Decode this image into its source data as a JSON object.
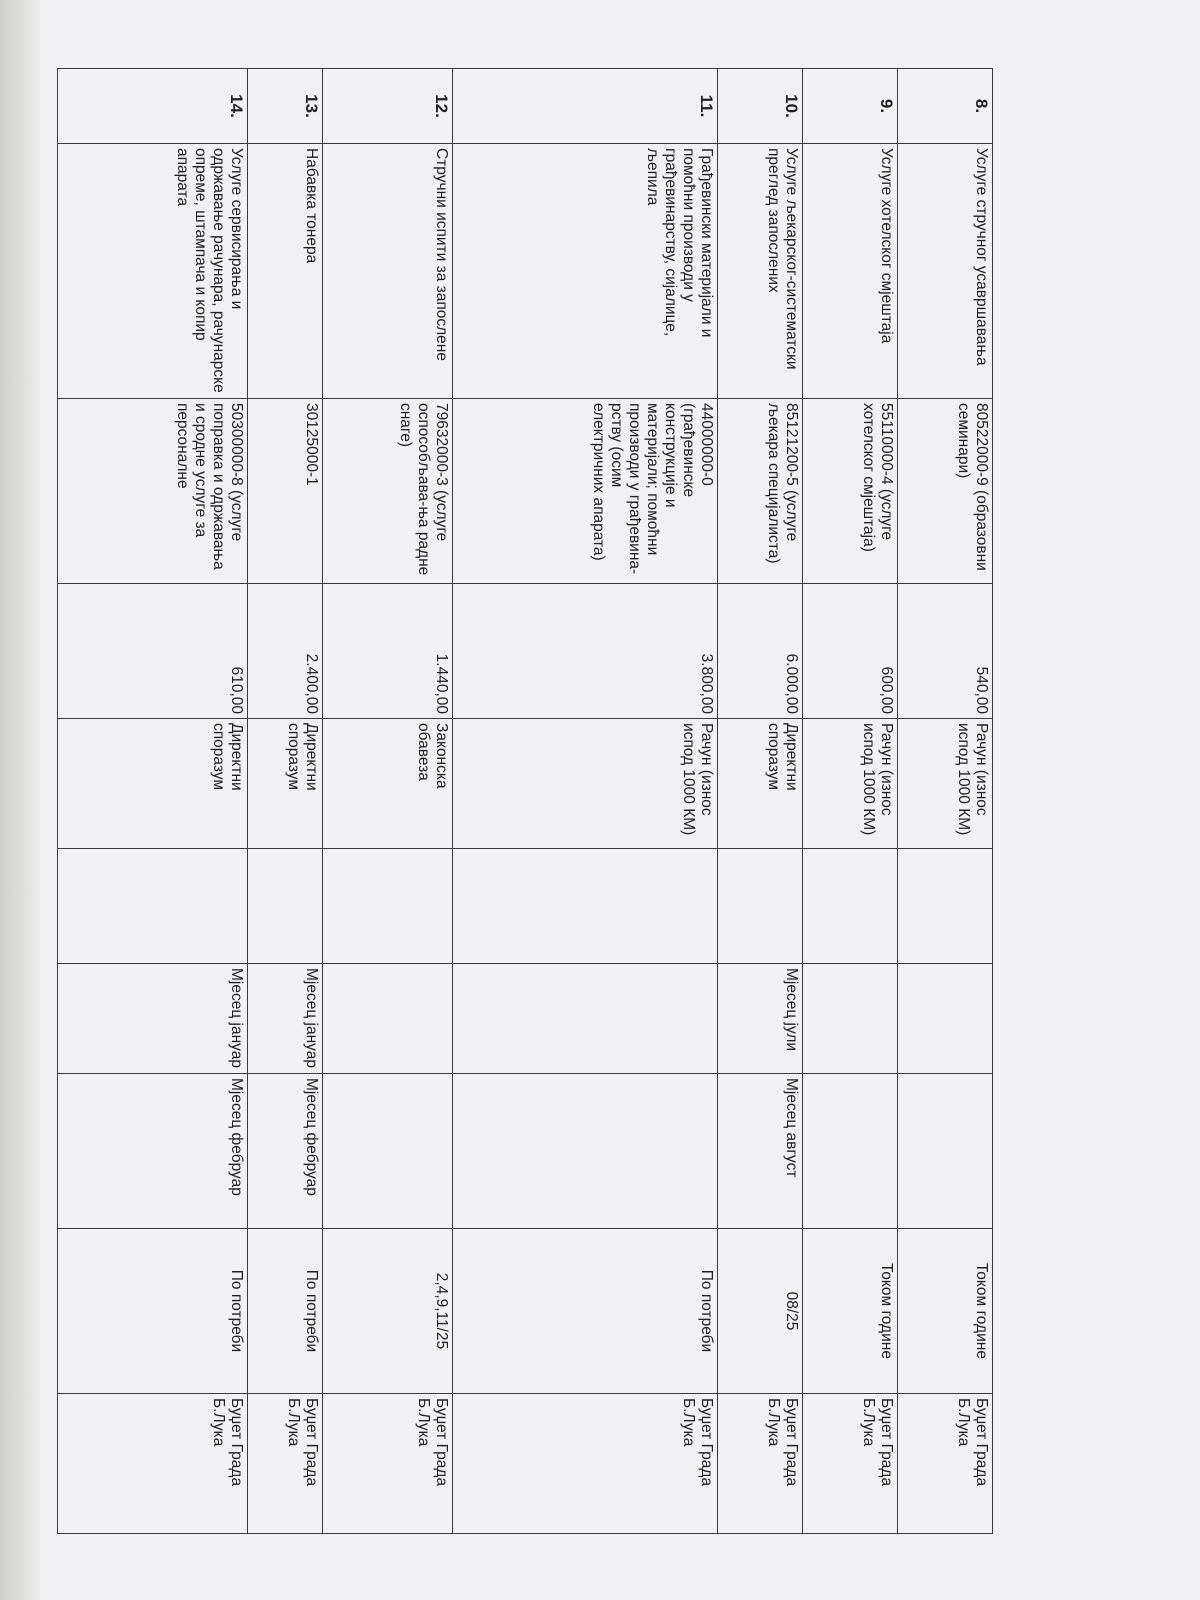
{
  "document": {
    "rows": [
      {
        "no": "8.",
        "subject": "Услуге стручног усавршавања",
        "cpv": "80522000-9 (образовни семинари)",
        "value": "540,00",
        "procedure": "Рачун (износ испод 1000 КМ)",
        "col6": "",
        "start": "",
        "end": "",
        "timing": "Током године",
        "funding": "Буџет Града Б.Лука"
      },
      {
        "no": "9.",
        "subject": "Услуге хотелског смјештаја",
        "cpv": "55110000-4 (услуге хотелског смјештаја)",
        "value": "600,00",
        "procedure": "Рачун (износ испод 1000 КМ)",
        "col6": "",
        "start": "",
        "end": "",
        "timing": "Током године",
        "funding": "Буџет Града Б.Лука"
      },
      {
        "no": "10.",
        "subject": "Услуге љекарског-систематски преглед запослених",
        "cpv": "85121200-5 (услуге љекара специјалиста)",
        "value": "6.000,00",
        "procedure": "Директни споразум",
        "col6": "",
        "start": "Мјесец јули",
        "end": "Мјесец август",
        "timing": "08/25",
        "funding": "Буџет Града Б.Лука"
      },
      {
        "no": "11.",
        "subject": "Грађевински материјали и помоћни производи у грађевинарству, сијалице, љепила",
        "cpv": "44000000-0 (грађевинске конструкције и материјали; помоћни производи у грађевина-рству (осим електричних апарата)",
        "value": "3.800,00",
        "procedure": "Рачун (износ испод 1000 КМ)",
        "col6": "",
        "start": "",
        "end": "",
        "timing": "По потреби",
        "funding": "Буџет Града Б.Лука"
      },
      {
        "no": "12.",
        "subject": "Стручни испити за запослене",
        "cpv": "79632000-3 (услуге оспособљава-ња радне снаге)",
        "value": "1.440,00",
        "procedure": "Законска обавеза",
        "col6": "",
        "start": "",
        "end": "",
        "timing": "2,4,9,11/25",
        "funding": "Буџет Града Б.Лука"
      },
      {
        "no": "13.",
        "subject": "Набавка тонера",
        "cpv": "30125000-1",
        "value": "2.400,00",
        "procedure": "Директни споразум",
        "col6": "",
        "start": "Мјесец јануар",
        "end": "Мјесец фебруар",
        "timing": "По потреби",
        "funding": "Буџет Града Б.Лука"
      },
      {
        "no": "14.",
        "subject": "Услуге сервисирања и одржавање рачунара, рачунарске опреме, штампача и копир апарата",
        "cpv": "50300000-8 (услуге поправка и одржавања и сродне услуге за персоналне",
        "value": "610,00",
        "procedure": "Директни споразум",
        "col6": "",
        "start": "Мјесец јануар",
        "end": "Мјесец фебруар",
        "timing": "По потреби",
        "funding": "Буџет Града Б.Лука"
      }
    ]
  }
}
